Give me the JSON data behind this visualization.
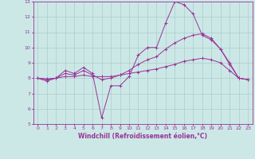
{
  "xlabel": "Windchill (Refroidissement éolien,°C)",
  "xlim": [
    -0.5,
    23.5
  ],
  "ylim": [
    5,
    13
  ],
  "xticks": [
    0,
    1,
    2,
    3,
    4,
    5,
    6,
    7,
    8,
    9,
    10,
    11,
    12,
    13,
    14,
    15,
    16,
    17,
    18,
    19,
    20,
    21,
    22,
    23
  ],
  "yticks": [
    5,
    6,
    7,
    8,
    9,
    10,
    11,
    12,
    13
  ],
  "background_color": "#cce8e6",
  "grid_color": "#aaccca",
  "axis_bottom_color": "#6644aa",
  "line_color": "#993399",
  "font_color": "#993399",
  "tick_fontsize": 4.5,
  "label_fontsize": 5.5,
  "curve1_x": [
    0,
    1,
    2,
    3,
    4,
    5,
    6,
    7,
    8,
    9,
    10,
    11,
    12,
    13,
    14,
    15,
    16,
    17,
    18,
    19,
    20,
    21,
    22,
    23
  ],
  "curve1_y": [
    8.0,
    7.8,
    8.0,
    8.5,
    8.3,
    8.7,
    8.3,
    5.4,
    7.5,
    7.5,
    8.1,
    9.5,
    10.0,
    10.0,
    11.6,
    13.0,
    12.8,
    12.2,
    10.8,
    10.5,
    9.9,
    8.9,
    8.0,
    7.9
  ],
  "curve2_x": [
    0,
    1,
    2,
    3,
    4,
    5,
    6,
    7,
    8,
    9,
    10,
    11,
    12,
    13,
    14,
    15,
    16,
    17,
    18,
    19,
    20,
    21,
    22,
    23
  ],
  "curve2_y": [
    8.0,
    7.9,
    8.0,
    8.3,
    8.2,
    8.5,
    8.2,
    7.9,
    8.0,
    8.2,
    8.5,
    8.9,
    9.2,
    9.4,
    9.9,
    10.3,
    10.6,
    10.8,
    10.9,
    10.6,
    9.9,
    9.0,
    8.0,
    7.9
  ],
  "curve3_x": [
    0,
    1,
    2,
    3,
    4,
    5,
    6,
    7,
    8,
    9,
    10,
    11,
    12,
    13,
    14,
    15,
    16,
    17,
    18,
    19,
    20,
    21,
    22,
    23
  ],
  "curve3_y": [
    8.0,
    7.95,
    8.0,
    8.1,
    8.1,
    8.2,
    8.1,
    8.1,
    8.1,
    8.2,
    8.3,
    8.4,
    8.5,
    8.6,
    8.75,
    8.9,
    9.1,
    9.2,
    9.3,
    9.2,
    9.0,
    8.5,
    8.0,
    7.9
  ]
}
